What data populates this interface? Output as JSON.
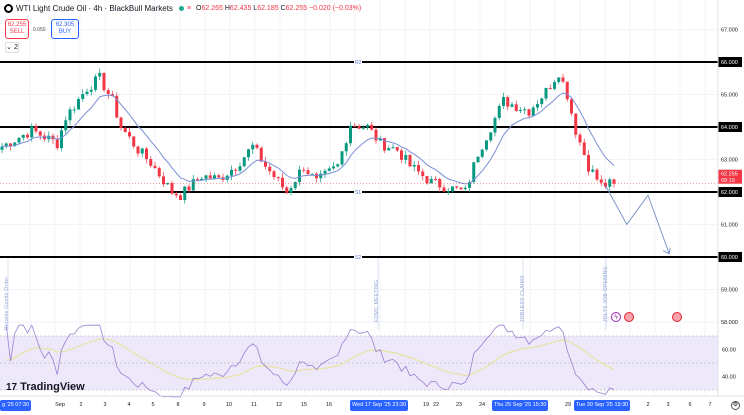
{
  "header": {
    "title": "WTI Light Crude Oil · 4h · BlackBull Markets",
    "o_label": "O",
    "o": "62.265",
    "h_label": "H",
    "h": "62.435",
    "l_label": "L",
    "l": "62.185",
    "c_label": "C",
    "c": "62.255",
    "change": "−0.020 (−0.03%)",
    "status_icon": "market-open-dot",
    "eq_icon": "≡"
  },
  "trade": {
    "sell_price": "62.255",
    "sell_label": "SELL",
    "spread": "0.050",
    "buy_price": "62.305",
    "buy_label": "BUY",
    "collapse": "⌄ 2"
  },
  "price_axis": [
    "67.000",
    "66.000",
    "65.000",
    "64.000",
    "63.000",
    "62.000",
    "61.000",
    "60.000",
    "59.000",
    "58.000"
  ],
  "current_price": {
    "price": "62.255",
    "countdown": "09:19",
    "color": "#f23645"
  },
  "levels": [
    {
      "name": "R2",
      "price": 66
    },
    {
      "name": "R1",
      "price": 64
    },
    {
      "name": "S1",
      "price": 62
    },
    {
      "name": "S2",
      "price": 60
    }
  ],
  "level_labels": {
    "r2": "R2",
    "s1": "S1",
    "s2": "S2"
  },
  "rsi_axis": [
    "60.00",
    "40.00"
  ],
  "events": [
    "Durable Goods Order",
    "FOMC MEETING",
    "JOBLESS CLAIMS",
    "JOLTS JOB OPENING"
  ],
  "date_axis": {
    "start": "g '25   07:30",
    "labels": [
      "Sep",
      "2",
      "3",
      "4",
      "5",
      "8",
      "9",
      "10",
      "11",
      "12",
      "15",
      "16",
      "19",
      "22",
      "23",
      "24",
      "29",
      "2",
      "3",
      "6",
      "7"
    ],
    "h1": "Wed 17 Sep '25   23:30",
    "h2": "Thu 25 Sep '25   15:30",
    "h3": "Tue 30 Sep '25   19:30"
  },
  "brand": {
    "name": "TradingView",
    "mark": "17"
  },
  "colors": {
    "up": "#089981",
    "down": "#f23645",
    "ma": "#7b8fd6",
    "rsi": "#9c7fd0",
    "rsi_ma": "#e8e3a0",
    "rsi_bg": "#ede9fb",
    "level": "#000000",
    "projection": "#7e95c9"
  },
  "price_path": [
    [
      0,
      63.4
    ],
    [
      7,
      63.9
    ],
    [
      13,
      63.5
    ],
    [
      15,
      64.3
    ],
    [
      20,
      65.2
    ],
    [
      23,
      65.5
    ],
    [
      26,
      64.8
    ],
    [
      28,
      64.0
    ],
    [
      32,
      63.3
    ],
    [
      35,
      62.9
    ],
    [
      40,
      62.0
    ],
    [
      42,
      61.9
    ],
    [
      47,
      62.5
    ],
    [
      51,
      62.4
    ],
    [
      55,
      62.8
    ],
    [
      59,
      63.4
    ],
    [
      62,
      62.8
    ],
    [
      67,
      62.0
    ],
    [
      71,
      62.8
    ],
    [
      74,
      62.3
    ],
    [
      79,
      62.8
    ],
    [
      82,
      64.1
    ],
    [
      86,
      64.0
    ],
    [
      89,
      63.5
    ],
    [
      93,
      63.3
    ],
    [
      96,
      62.8
    ],
    [
      101,
      62.3
    ],
    [
      106,
      62.1
    ],
    [
      109,
      62.0
    ],
    [
      112,
      63.2
    ],
    [
      118,
      64.8
    ],
    [
      124,
      64.5
    ],
    [
      128,
      65.1
    ],
    [
      131,
      65.7
    ],
    [
      133,
      65.0
    ],
    [
      135,
      63.9
    ],
    [
      138,
      62.8
    ],
    [
      141,
      62.2
    ],
    [
      144,
      62.255
    ]
  ],
  "projection": [
    [
      142,
      62.2
    ],
    [
      147,
      61.0
    ],
    [
      152,
      61.9
    ],
    [
      157,
      60.1
    ]
  ]
}
